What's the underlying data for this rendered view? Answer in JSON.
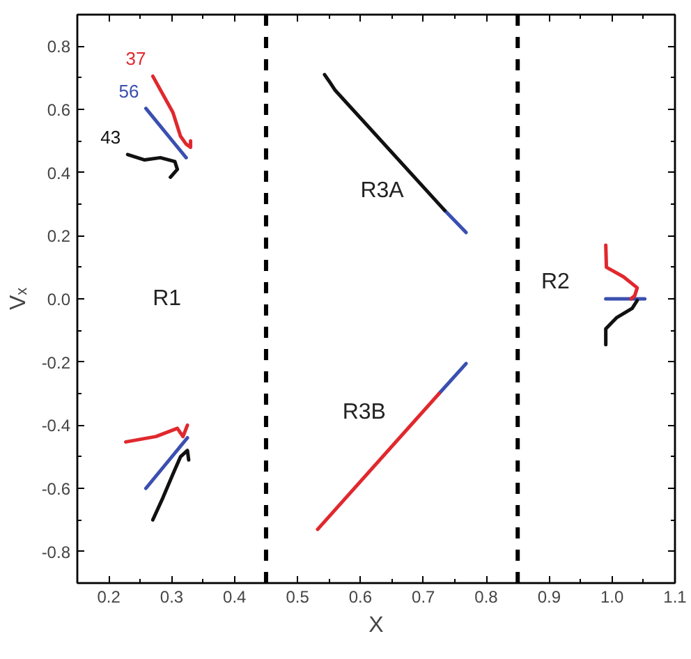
{
  "chart_data": {
    "type": "line",
    "xlabel": "X",
    "ylabel": "Vₓ",
    "xlim": [
      0.15,
      1.1
    ],
    "ylim": [
      -0.9,
      0.9
    ],
    "xticks": [
      {
        "value": 0.2,
        "label": "0.2"
      },
      {
        "value": 0.3,
        "label": "0.3"
      },
      {
        "value": 0.4,
        "label": "0.4"
      },
      {
        "value": 0.5,
        "label": "0.5"
      },
      {
        "value": 0.6,
        "label": "0.6"
      },
      {
        "value": 0.7,
        "label": "0.7"
      },
      {
        "value": 0.8,
        "label": "0.8"
      },
      {
        "value": 0.9,
        "label": "0.9"
      },
      {
        "value": 1.0,
        "label": "1.0"
      },
      {
        "value": 1.1,
        "label": "1.1"
      }
    ],
    "yticks": [
      {
        "value": -0.8,
        "label": "-0.8"
      },
      {
        "value": -0.6,
        "label": "-0.6"
      },
      {
        "value": -0.4,
        "label": "-0.4"
      },
      {
        "value": -0.2,
        "label": "-0.2"
      },
      {
        "value": 0.0,
        "label": "0.0"
      },
      {
        "value": 0.2,
        "label": "0.2"
      },
      {
        "value": 0.4,
        "label": "0.4"
      },
      {
        "value": 0.6,
        "label": "0.6"
      },
      {
        "value": 0.8,
        "label": "0.8"
      }
    ],
    "grid": false,
    "marker": "none",
    "line_style": "solid",
    "series": [
      {
        "name": "56",
        "color": "#3a4fb0",
        "x": [
          0.259,
          0.323,
          null,
          0.259,
          0.325,
          null,
          0.734,
          0.768,
          null,
          0.99,
          1.052
        ],
        "values": [
          0.603,
          0.447,
          null,
          -0.6,
          -0.44,
          null,
          0.28,
          0.21,
          null,
          0.0,
          0.0
        ]
      },
      {
        "color": "#3a4fb0",
        "x": [
          0.725,
          0.768
        ],
        "values": [
          -0.3,
          -0.205
        ]
      },
      {
        "name": "43",
        "color": "#111111",
        "x": [
          0.23,
          0.257,
          0.282,
          0.305,
          0.309,
          0.298,
          null,
          0.27,
          0.286,
          0.302,
          0.314,
          0.325,
          0.327,
          null,
          0.543,
          0.55,
          0.56,
          0.734,
          null,
          1.04,
          1.032,
          1.007,
          0.99,
          0.99
        ],
        "values": [
          0.457,
          0.44,
          0.447,
          0.435,
          0.41,
          0.385,
          null,
          -0.7,
          -0.63,
          -0.555,
          -0.5,
          -0.48,
          -0.51,
          null,
          0.71,
          0.69,
          0.66,
          0.28,
          null,
          -0.005,
          -0.03,
          -0.06,
          -0.095,
          -0.145
        ]
      },
      {
        "name": "37",
        "color": "#e0282e",
        "x": [
          0.27,
          0.302,
          0.314,
          0.323,
          0.33,
          0.33,
          null,
          0.227,
          0.275,
          0.309,
          0.318,
          0.325,
          null,
          0.532,
          0.725,
          null,
          0.99,
          0.991,
          1.018,
          1.04,
          1.036,
          1.03
        ],
        "values": [
          0.705,
          0.59,
          0.515,
          0.49,
          0.48,
          0.5,
          null,
          -0.453,
          -0.436,
          -0.41,
          -0.436,
          -0.4,
          null,
          -0.73,
          -0.3,
          null,
          0.17,
          0.1,
          0.07,
          0.035,
          0.01,
          0.0
        ]
      }
    ],
    "ref_lines": [
      {
        "axis": "x",
        "value": 0.45,
        "color": "#000000",
        "line_style": "dashed"
      },
      {
        "axis": "x",
        "value": 0.85,
        "color": "#000000",
        "line_style": "dashed"
      }
    ],
    "annotations": [
      "R1",
      "R2",
      "R3A",
      "R3B"
    ]
  }
}
